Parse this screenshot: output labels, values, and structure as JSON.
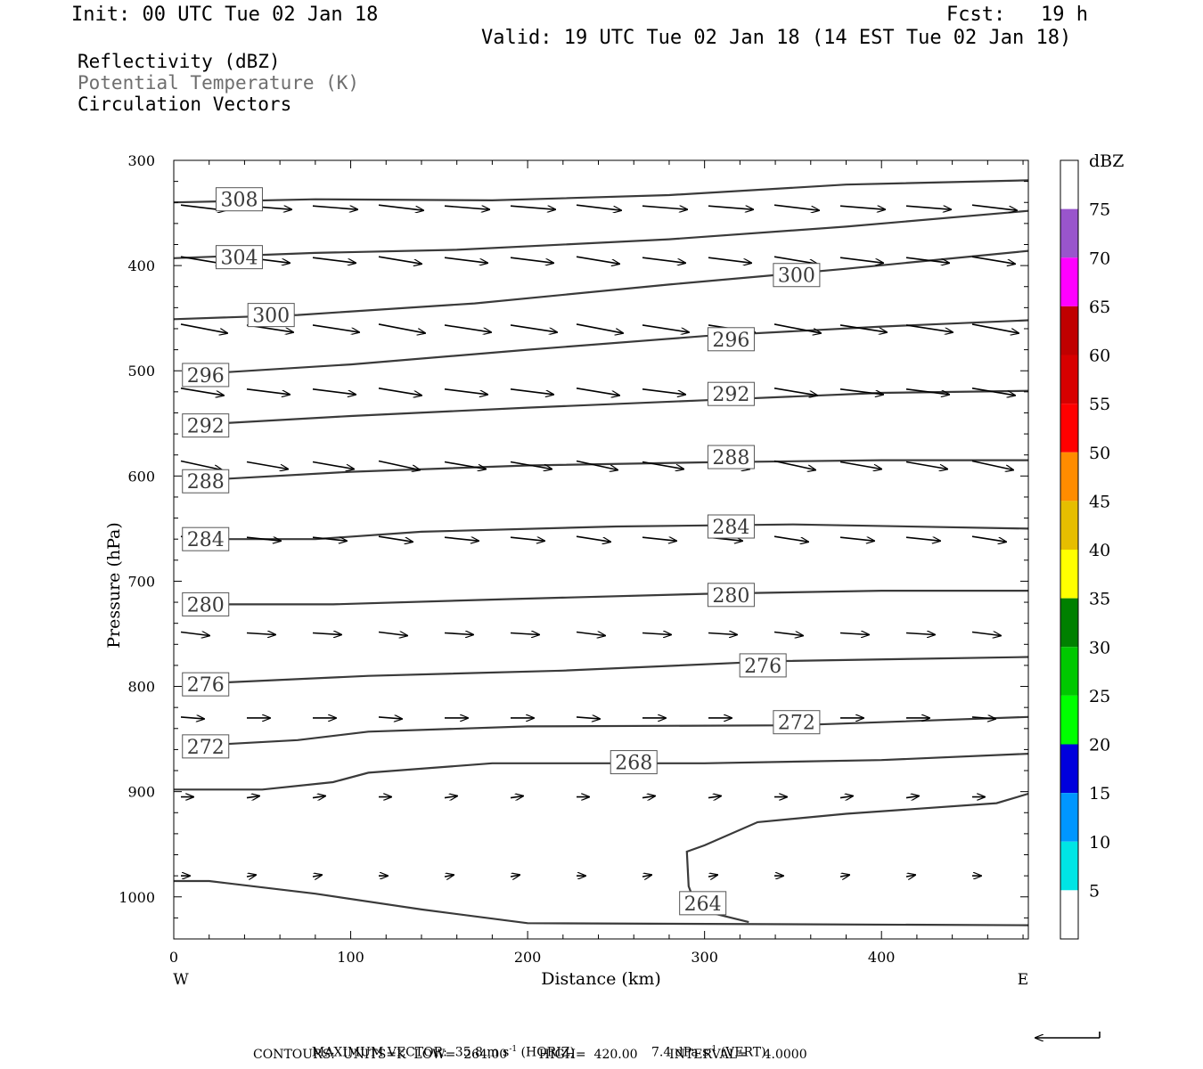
{
  "header": {
    "init": "Init: 00 UTC Tue 02 Jan 18",
    "fcst": "Fcst:   19 h",
    "valid": "Valid: 19 UTC Tue 02 Jan 18 (14 EST Tue 02 Jan 18)"
  },
  "legend": {
    "line1": "Reflectivity (dBZ)",
    "line2": "Potential Temperature (K)",
    "line3": "Circulation Vectors"
  },
  "footer": {
    "line1_a": "MAXIMUM VECTOR:  35.8 m s",
    "line1_b": " (HORIZ)",
    "line1_c": "7.4 dPa s",
    "line1_d": " (VERT)",
    "sup": "-1",
    "line2": "CONTOURS:  UNITS=K  LOW=  264.00        HIGH=  420.00        INTERVAL=    4.0000"
  },
  "chart_data": {
    "type": "line",
    "subtype": "vertical cross-section (contours + vectors)",
    "xlabel": "Distance (km)",
    "ylabel": "Pressure (hPa)",
    "xlim": [
      0,
      483
    ],
    "ylim": [
      1040,
      300
    ],
    "x_ticks": [
      "0",
      "100",
      "200",
      "300",
      "400"
    ],
    "y_ticks": [
      "300",
      "400",
      "500",
      "600",
      "700",
      "800",
      "900",
      "1000"
    ],
    "x_end_labels": {
      "left": "W",
      "right": "E"
    },
    "colorbar": {
      "unit": "dBZ",
      "labels": [
        "5",
        "10",
        "15",
        "20",
        "25",
        "30",
        "35",
        "40",
        "45",
        "50",
        "55",
        "60",
        "65",
        "70",
        "75"
      ],
      "colors": [
        "#ffffff",
        "#00e5e5",
        "#0096ff",
        "#0000dd",
        "#00ff00",
        "#00c800",
        "#008000",
        "#ffff00",
        "#e6be00",
        "#ff8c00",
        "#ff0000",
        "#d70000",
        "#c00000",
        "#ff00ff",
        "#9955cc",
        "#ffffff"
      ]
    },
    "contours": [
      {
        "label": "308",
        "points": [
          [
            0,
            340
          ],
          [
            80,
            337
          ],
          [
            180,
            338
          ],
          [
            280,
            333
          ],
          [
            380,
            323
          ],
          [
            483,
            319
          ]
        ],
        "label_pos": [
          37,
          337
        ]
      },
      {
        "label": "304",
        "points": [
          [
            0,
            393
          ],
          [
            80,
            388
          ],
          [
            160,
            385
          ],
          [
            280,
            375
          ],
          [
            380,
            363
          ],
          [
            483,
            348
          ]
        ],
        "label_pos": [
          37,
          392
        ]
      },
      {
        "label": "300",
        "points": [
          [
            0,
            451
          ],
          [
            70,
            447
          ],
          [
            170,
            436
          ],
          [
            280,
            418
          ],
          [
            380,
            403
          ],
          [
            483,
            386
          ]
        ],
        "label_pos": [
          55,
          447
        ]
      },
      {
        "label": "300",
        "points": [],
        "label_pos": [
          352,
          409
        ]
      },
      {
        "label": "296",
        "points": [
          [
            5,
            504
          ],
          [
            100,
            494
          ],
          [
            200,
            480
          ],
          [
            300,
            467
          ],
          [
            400,
            458
          ],
          [
            483,
            452
          ]
        ],
        "label_pos": [
          18,
          504
        ]
      },
      {
        "label": "296",
        "points": [],
        "label_pos": [
          315,
          470
        ]
      },
      {
        "label": "292",
        "points": [
          [
            5,
            552
          ],
          [
            100,
            543
          ],
          [
            200,
            535
          ],
          [
            300,
            528
          ],
          [
            400,
            521
          ],
          [
            483,
            519
          ]
        ],
        "label_pos": [
          18,
          552
        ]
      },
      {
        "label": "292",
        "points": [],
        "label_pos": [
          315,
          522
        ]
      },
      {
        "label": "288",
        "points": [
          [
            5,
            605
          ],
          [
            100,
            596
          ],
          [
            200,
            590
          ],
          [
            300,
            587
          ],
          [
            400,
            585
          ],
          [
            483,
            585
          ]
        ],
        "label_pos": [
          18,
          605
        ]
      },
      {
        "label": "288",
        "points": [],
        "label_pos": [
          315,
          582
        ]
      },
      {
        "label": "284",
        "points": [
          [
            5,
            660
          ],
          [
            80,
            660
          ],
          [
            140,
            653
          ],
          [
            250,
            648
          ],
          [
            350,
            646
          ],
          [
            483,
            650
          ]
        ],
        "label_pos": [
          18,
          660
        ]
      },
      {
        "label": "284",
        "points": [],
        "label_pos": [
          315,
          648
        ]
      },
      {
        "label": "280",
        "points": [
          [
            5,
            722
          ],
          [
            90,
            722
          ],
          [
            190,
            717
          ],
          [
            300,
            712
          ],
          [
            400,
            709
          ],
          [
            483,
            709
          ]
        ],
        "label_pos": [
          18,
          722
        ]
      },
      {
        "label": "280",
        "points": [],
        "label_pos": [
          315,
          713
        ]
      },
      {
        "label": "276",
        "points": [
          [
            5,
            798
          ],
          [
            110,
            790
          ],
          [
            220,
            785
          ],
          [
            340,
            776
          ],
          [
            483,
            772
          ]
        ],
        "label_pos": [
          18,
          798
        ]
      },
      {
        "label": "276",
        "points": [],
        "label_pos": [
          333,
          780
        ]
      },
      {
        "label": "272",
        "points": [
          [
            5,
            857
          ],
          [
            70,
            851
          ],
          [
            110,
            843
          ],
          [
            200,
            838
          ],
          [
            350,
            837
          ],
          [
            483,
            829
          ]
        ],
        "label_pos": [
          18,
          857
        ]
      },
      {
        "label": "272",
        "points": [],
        "label_pos": [
          352,
          834
        ]
      },
      {
        "label": "268",
        "points": [
          [
            0,
            898
          ],
          [
            50,
            898
          ],
          [
            90,
            891
          ],
          [
            110,
            882
          ],
          [
            180,
            873
          ],
          [
            300,
            873
          ],
          [
            400,
            870
          ],
          [
            483,
            864
          ]
        ],
        "label_pos": [
          260,
          872
        ]
      },
      {
        "label": "264",
        "points": [
          [
            483,
            902
          ],
          [
            465,
            911
          ],
          [
            380,
            921
          ],
          [
            330,
            929
          ],
          [
            300,
            951
          ],
          [
            290,
            957
          ],
          [
            291,
            990
          ],
          [
            296,
            1012
          ],
          [
            325,
            1024
          ]
        ],
        "label_pos": [
          299,
          1006
        ]
      },
      {
        "label": "",
        "points": [
          [
            0,
            985
          ],
          [
            20,
            985
          ],
          [
            80,
            997
          ],
          [
            140,
            1012
          ],
          [
            200,
            1025
          ],
          [
            483,
            1027
          ]
        ],
        "label_pos": null
      }
    ],
    "vectors_levels_hPa": [
      345,
      395,
      460,
      520,
      590,
      660,
      750,
      830,
      905,
      980
    ],
    "max_vector": {
      "horiz": "35.8 m s-1",
      "vert": "7.4 dPa s-1"
    },
    "contour_info": {
      "units": "K",
      "low": 264.0,
      "high": 420.0,
      "interval": 4.0
    }
  }
}
